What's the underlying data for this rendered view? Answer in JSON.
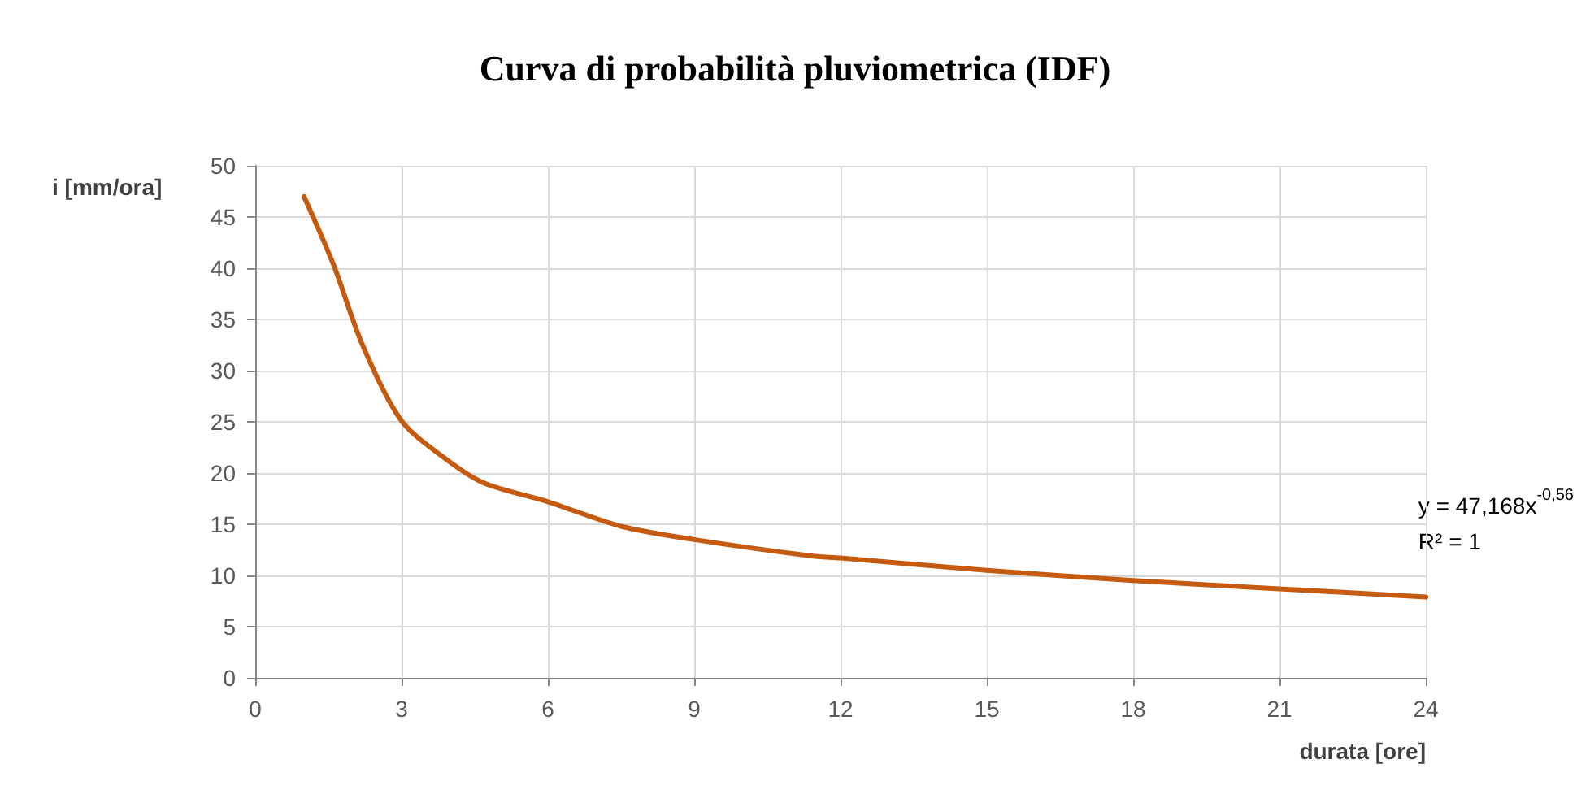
{
  "chart_data": {
    "type": "line",
    "title": "Curva di probabilità pluviometrica (IDF)",
    "xlabel": "durata [ore]",
    "ylabel": "i [mm/ora]",
    "x": [
      1,
      1.6,
      2.2,
      3,
      3.9,
      4.7,
      6,
      7.5,
      9,
      11.4,
      12,
      15,
      18,
      21,
      24
    ],
    "series": [
      {
        "color": "#c55a11",
        "values": [
          47,
          40.4,
          32.5,
          25.1,
          21.4,
          19,
          17.2,
          14.8,
          13.5,
          11.9,
          11.7,
          10.5,
          9.5,
          8.7,
          7.9
        ]
      }
    ],
    "xlim": [
      0,
      24
    ],
    "xticks": [
      0,
      3,
      6,
      9,
      12,
      15,
      18,
      21,
      24
    ],
    "ylim": [
      0,
      50
    ],
    "yticks": [
      0,
      5,
      10,
      15,
      20,
      25,
      30,
      35,
      40,
      45,
      50
    ],
    "grid": true,
    "marker": "none",
    "line_style": "solid",
    "annotations": [
      "y = 47,168x$^{-0,56}$",
      "R² = 1"
    ]
  }
}
